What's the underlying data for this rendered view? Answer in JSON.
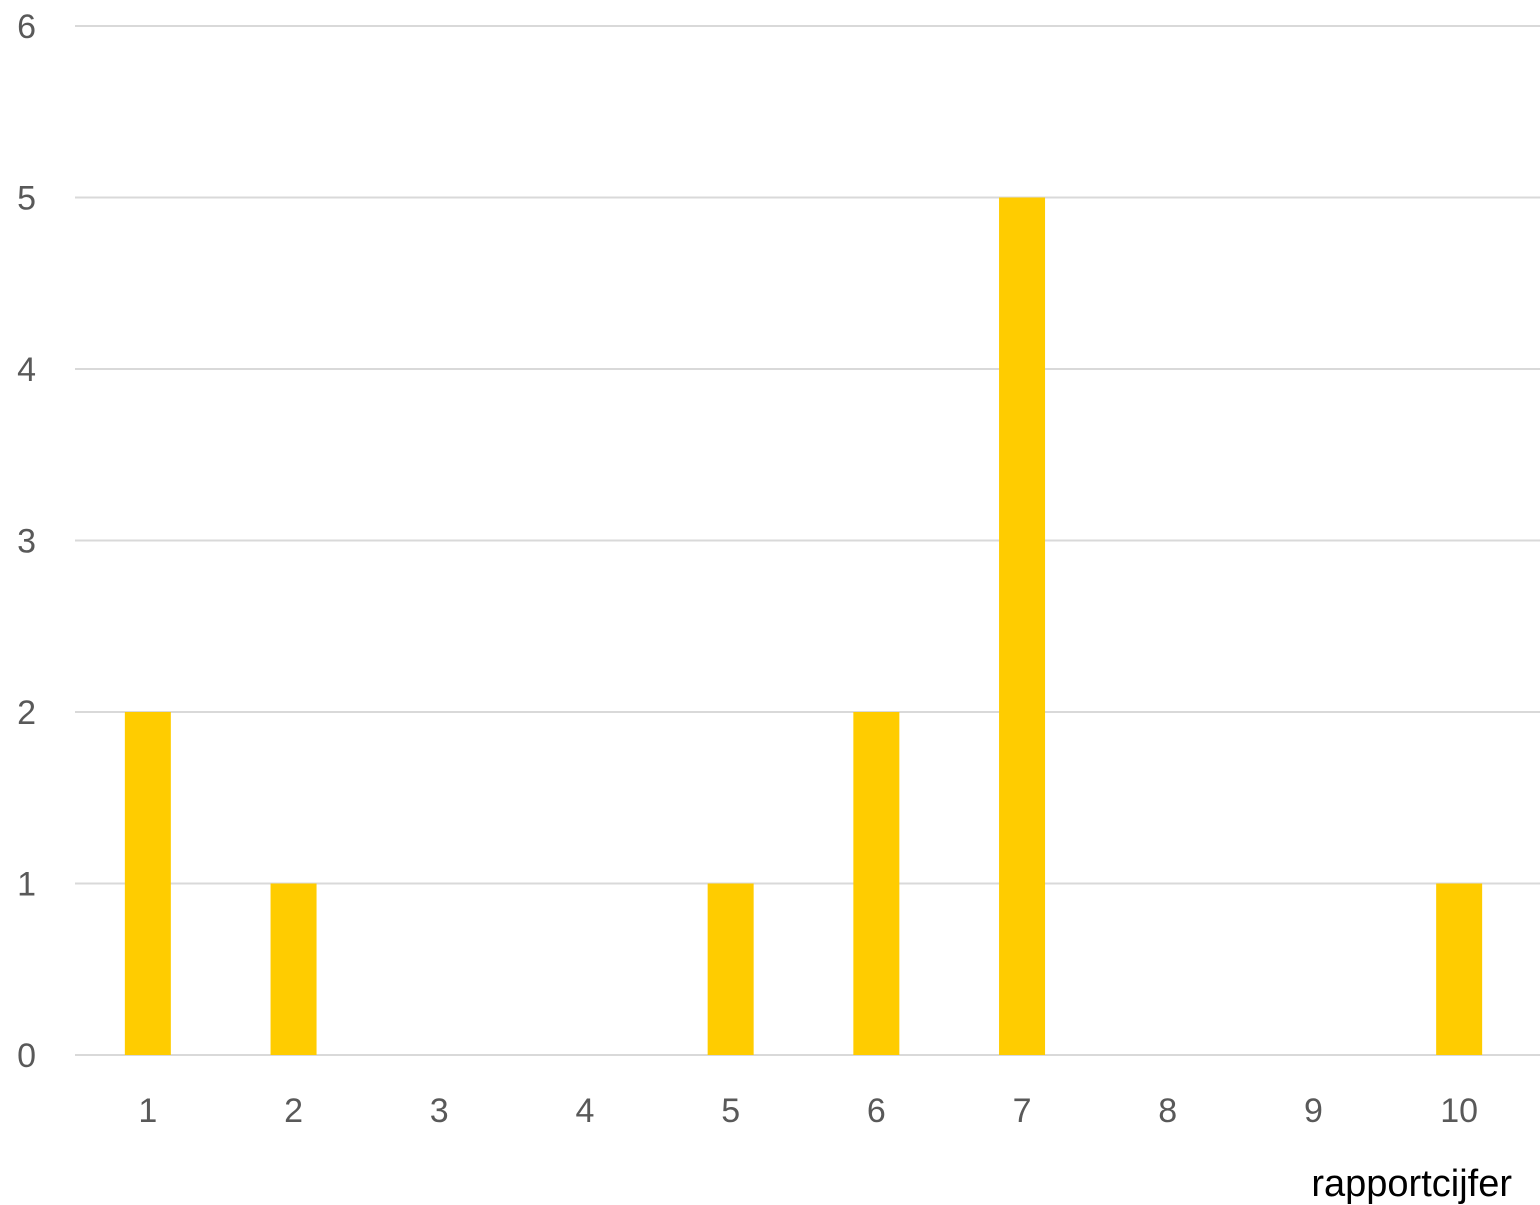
{
  "chart_data": {
    "type": "bar",
    "categories": [
      "1",
      "2",
      "3",
      "4",
      "5",
      "6",
      "7",
      "8",
      "9",
      "10"
    ],
    "values": [
      2,
      1,
      0,
      0,
      1,
      2,
      5,
      0,
      0,
      1
    ],
    "title": "",
    "xlabel": "rapportcijfer",
    "ylabel": "",
    "ylim": [
      0,
      6
    ],
    "yticks": [
      "0",
      "1",
      "2",
      "3",
      "4",
      "5",
      "6"
    ],
    "grid": true,
    "legend": "none",
    "bar_color": "#FFCC00",
    "grid_color": "#D9D9D9",
    "tick_color": "#595959"
  }
}
